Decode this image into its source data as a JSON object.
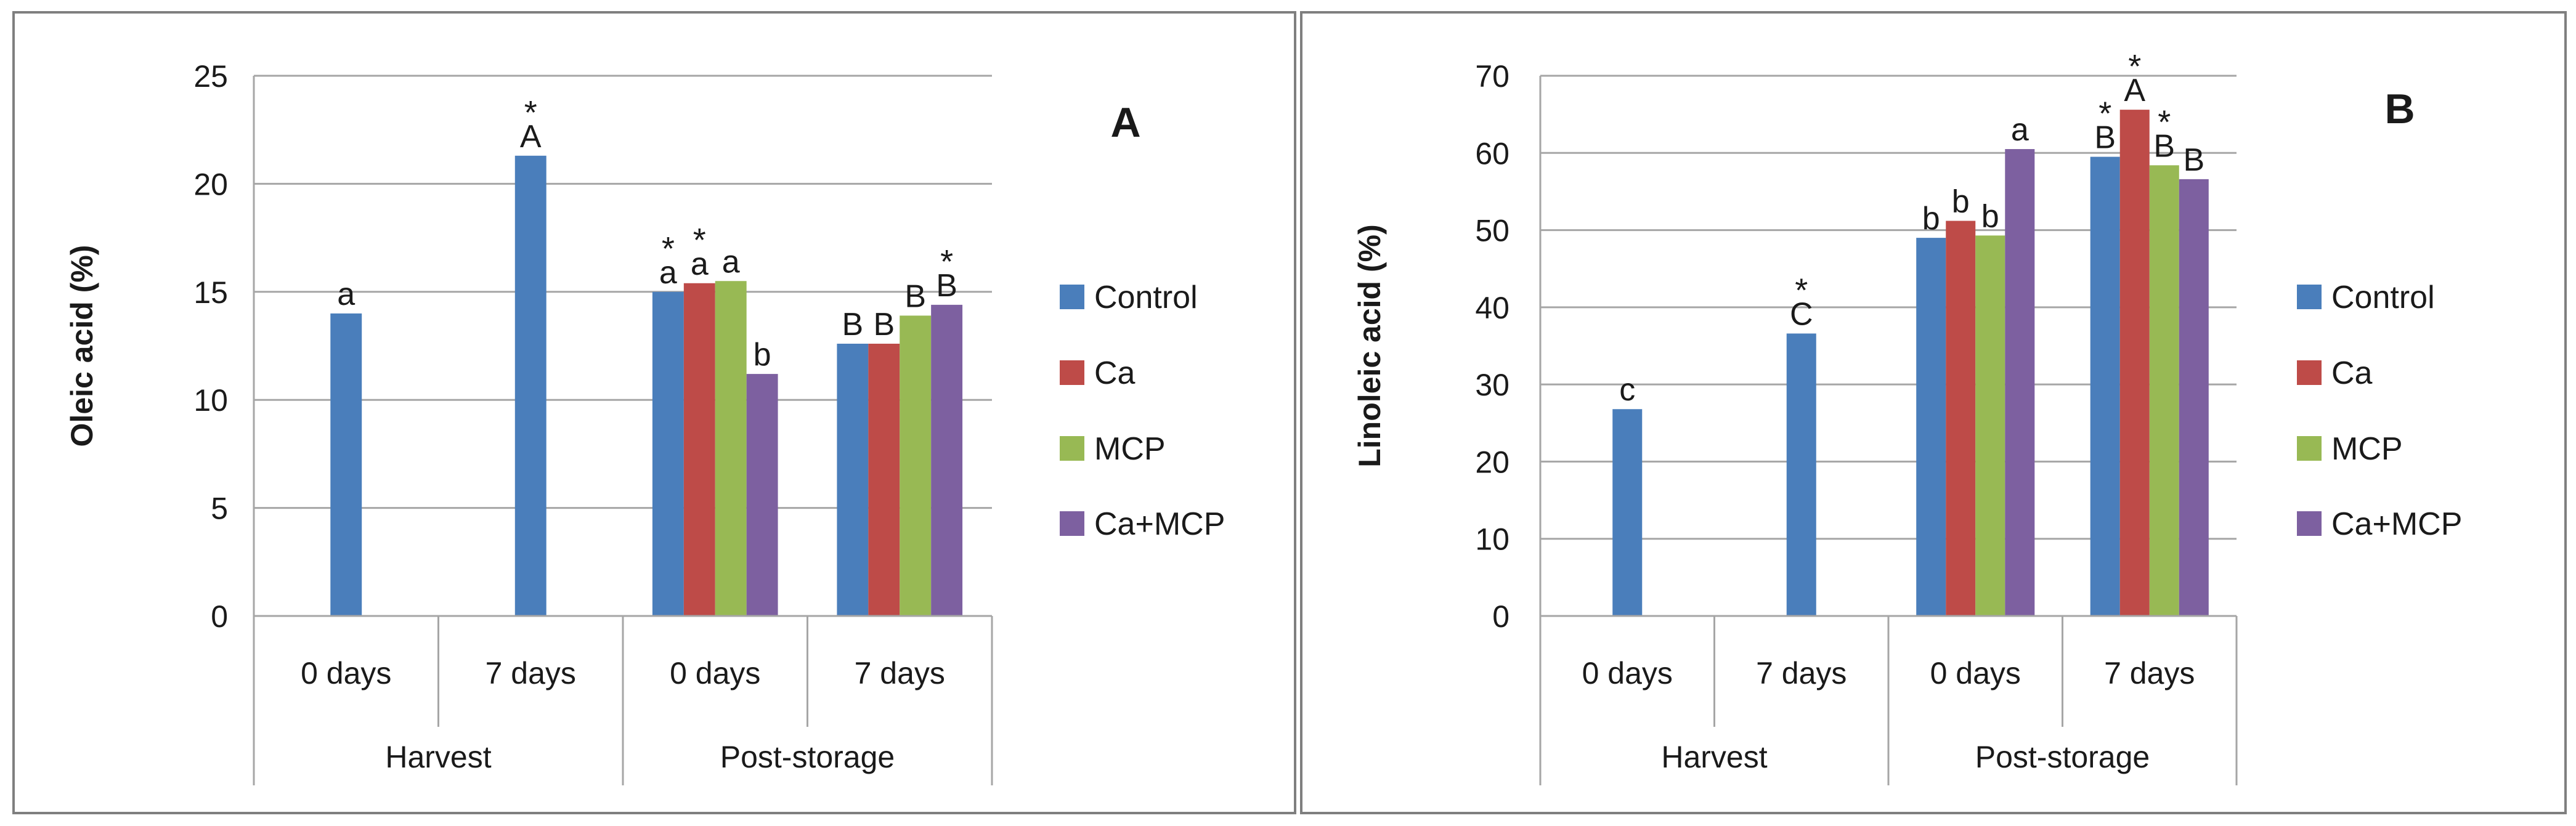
{
  "colors": {
    "Control": "#4a7ebb",
    "Ca": "#be4b48",
    "MCP": "#98b954",
    "Ca+MCP": "#7d60a0",
    "grid": "#a6a6a6",
    "frame": "#7f7f7f",
    "text": "#1a1a1a"
  },
  "chart_data": [
    {
      "type": "bar",
      "panel_label": "A",
      "ylabel": "Oleic acid (%)",
      "xlabel": "",
      "ylim": [
        0,
        25
      ],
      "yticks": [
        "0",
        "5",
        "10",
        "15",
        "20",
        "25"
      ],
      "grid": true,
      "legend_position": "right",
      "categories": [
        "0 days",
        "7 days",
        "0 days",
        "7 days"
      ],
      "groups": [
        "Harvest",
        "Post-storage"
      ],
      "series": [
        {
          "name": "Control",
          "values": [
            14.0,
            21.3,
            15.0,
            12.6
          ],
          "labels": [
            "a",
            "A",
            "a",
            "B"
          ],
          "stars": [
            false,
            true,
            true,
            false
          ]
        },
        {
          "name": "Ca",
          "values": [
            null,
            null,
            15.4,
            12.6
          ],
          "labels": [
            null,
            null,
            "a",
            "B"
          ],
          "stars": [
            false,
            false,
            true,
            false
          ]
        },
        {
          "name": "MCP",
          "values": [
            null,
            null,
            15.5,
            13.9
          ],
          "labels": [
            null,
            null,
            "a",
            "B"
          ],
          "stars": [
            false,
            false,
            false,
            false
          ]
        },
        {
          "name": "Ca+MCP",
          "values": [
            null,
            null,
            11.2,
            14.4
          ],
          "labels": [
            null,
            null,
            "b",
            "B"
          ],
          "stars": [
            false,
            false,
            false,
            true
          ]
        }
      ]
    },
    {
      "type": "bar",
      "panel_label": "B",
      "ylabel": "Linoleic acid (%)",
      "xlabel": "",
      "ylim": [
        0,
        70
      ],
      "yticks": [
        "0",
        "10",
        "20",
        "30",
        "40",
        "50",
        "60",
        "70"
      ],
      "grid": true,
      "legend_position": "right",
      "categories": [
        "0 days",
        "7 days",
        "0 days",
        "7 days"
      ],
      "groups": [
        "Harvest",
        "Post-storage"
      ],
      "series": [
        {
          "name": "Control",
          "values": [
            26.8,
            36.6,
            49.0,
            59.5
          ],
          "labels": [
            "c",
            "C",
            "b",
            "B"
          ],
          "stars": [
            false,
            true,
            false,
            true
          ]
        },
        {
          "name": "Ca",
          "values": [
            null,
            null,
            51.2,
            65.6
          ],
          "labels": [
            null,
            null,
            "b",
            "A"
          ],
          "stars": [
            false,
            false,
            false,
            true
          ]
        },
        {
          "name": "MCP",
          "values": [
            null,
            null,
            49.3,
            58.4
          ],
          "labels": [
            null,
            null,
            "b",
            "B"
          ],
          "stars": [
            false,
            false,
            false,
            true
          ]
        },
        {
          "name": "Ca+MCP",
          "values": [
            null,
            null,
            60.5,
            56.6
          ],
          "labels": [
            null,
            null,
            "a",
            "B"
          ],
          "stars": [
            false,
            false,
            false,
            false
          ]
        }
      ]
    }
  ]
}
